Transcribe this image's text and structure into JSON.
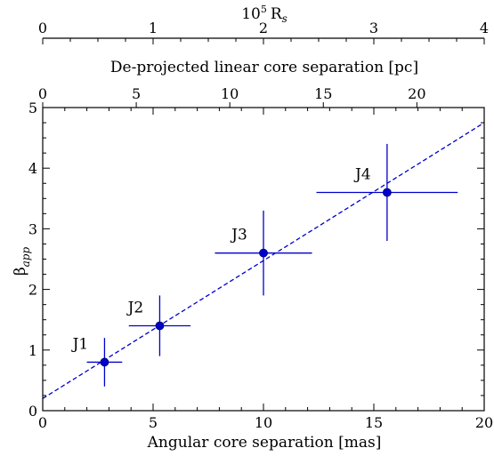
{
  "chart_data": {
    "type": "scatter",
    "x_axis": {
      "label": "Angular core separation [mas]",
      "range": [
        0,
        20
      ],
      "ticks": [
        0,
        5,
        10,
        15,
        20
      ]
    },
    "y_axis": {
      "label": "β",
      "label_subscript": "app",
      "range": [
        0,
        5
      ],
      "ticks": [
        0,
        1,
        2,
        3,
        4,
        5
      ]
    },
    "top_axis_inner": {
      "label": "De-projected linear core separation [pc]",
      "scale_pc_per_mas": 1.18,
      "ticks": [
        0,
        5,
        10,
        15,
        20
      ]
    },
    "top_axis_outer": {
      "label_base": "10",
      "label_exponent": "5",
      "label_unit": "R",
      "label_unit_subscript": "s",
      "scale_1e5Rs_per_mas": 0.2,
      "ticks": [
        0,
        1,
        2,
        3,
        4
      ]
    },
    "series": [
      {
        "points": [
          {
            "label": "J1",
            "x": 2.8,
            "y": 0.8,
            "x_err": 0.8,
            "y_err": 0.4
          },
          {
            "label": "J2",
            "x": 5.3,
            "y": 1.4,
            "x_err": 1.4,
            "y_err": 0.5
          },
          {
            "label": "J3",
            "x": 10.0,
            "y": 2.6,
            "x_err": 2.2,
            "y_err": 0.7
          },
          {
            "label": "J4",
            "x": 15.6,
            "y": 3.6,
            "x_err": 3.2,
            "y_err": 0.8
          }
        ]
      }
    ],
    "fit_line": {
      "intercept": 0.2,
      "slope": 0.2275,
      "style": "dashed"
    },
    "colors": {
      "data": "#0000cc",
      "axes": "#000000"
    },
    "grid": false
  }
}
